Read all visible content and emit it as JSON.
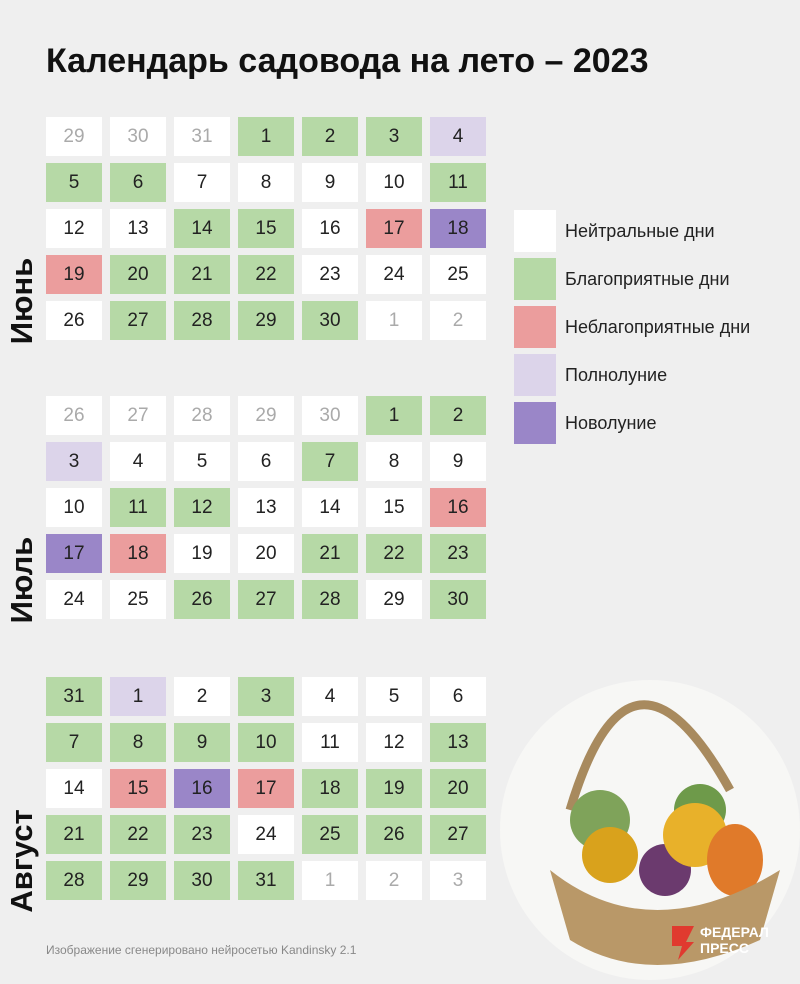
{
  "title": "Календарь садовода на лето – 2023",
  "legend": [
    {
      "label": "Нейтральные дни",
      "color": "#ffffff"
    },
    {
      "label": "Благоприятные дни",
      "color": "#b6d9a6"
    },
    {
      "label": "Неблагоприятные дни",
      "color": "#eb9d9d"
    },
    {
      "label": "Полнолуние",
      "color": "#dcd4ea"
    },
    {
      "label": "Новолуние",
      "color": "#9a86c8"
    }
  ],
  "muted_color": "#aaaaaa",
  "months": [
    {
      "name": "Июнь",
      "rows": [
        [
          29,
          30,
          31,
          1,
          2,
          3,
          4
        ],
        [
          5,
          6,
          7,
          8,
          9,
          10,
          11
        ],
        [
          12,
          13,
          14,
          15,
          16,
          17,
          18
        ],
        [
          19,
          20,
          21,
          22,
          23,
          24,
          25
        ],
        [
          26,
          27,
          28,
          29,
          30,
          1,
          2
        ]
      ],
      "kinds": [
        [
          null,
          null,
          null,
          1,
          1,
          1,
          3
        ],
        [
          1,
          1,
          0,
          0,
          0,
          0,
          1
        ],
        [
          0,
          0,
          1,
          1,
          0,
          2,
          4
        ],
        [
          2,
          1,
          1,
          1,
          0,
          0,
          0
        ],
        [
          0,
          1,
          1,
          1,
          1,
          null,
          null
        ]
      ]
    },
    {
      "name": "Июль",
      "rows": [
        [
          26,
          27,
          28,
          29,
          30,
          1,
          2
        ],
        [
          3,
          4,
          5,
          6,
          7,
          8,
          9
        ],
        [
          10,
          11,
          12,
          13,
          14,
          15,
          16
        ],
        [
          17,
          18,
          19,
          20,
          21,
          22,
          23
        ],
        [
          24,
          25,
          26,
          27,
          28,
          29,
          30
        ]
      ],
      "kinds": [
        [
          null,
          null,
          null,
          null,
          null,
          1,
          1
        ],
        [
          3,
          0,
          0,
          0,
          1,
          0,
          0
        ],
        [
          0,
          1,
          1,
          0,
          0,
          0,
          2
        ],
        [
          4,
          2,
          0,
          0,
          1,
          1,
          1
        ],
        [
          0,
          0,
          1,
          1,
          1,
          0,
          1
        ]
      ]
    },
    {
      "name": "Август",
      "rows": [
        [
          31,
          1,
          2,
          3,
          4,
          5,
          6
        ],
        [
          7,
          8,
          9,
          10,
          11,
          12,
          13
        ],
        [
          14,
          15,
          16,
          17,
          18,
          19,
          20
        ],
        [
          21,
          22,
          23,
          24,
          25,
          26,
          27
        ],
        [
          28,
          29,
          30,
          31,
          1,
          2,
          3
        ]
      ],
      "kinds": [
        [
          1,
          3,
          0,
          1,
          0,
          0,
          0
        ],
        [
          1,
          1,
          1,
          1,
          0,
          0,
          1
        ],
        [
          0,
          2,
          4,
          2,
          1,
          1,
          1
        ],
        [
          1,
          1,
          1,
          0,
          1,
          1,
          1
        ],
        [
          1,
          1,
          1,
          1,
          null,
          null,
          null
        ]
      ]
    }
  ],
  "footer": "Изображение сгенерировано нейросетью Kandinsky 2.1",
  "logo": "ФЕДЕРАЛ ПРЕСС"
}
